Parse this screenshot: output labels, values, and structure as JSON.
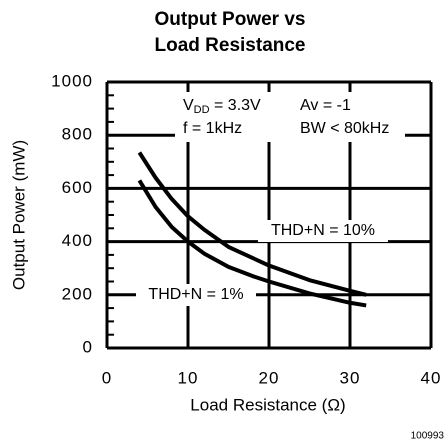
{
  "chart_data": {
    "type": "line",
    "title": [
      "Output Power vs",
      "Load Resistance"
    ],
    "xlabel": "Load Resistance  (Ω)",
    "ylabel": "Output Power (mW)",
    "xlim": [
      0,
      40
    ],
    "xticks": [
      0,
      10,
      20,
      30,
      40
    ],
    "ylim": [
      0,
      1000
    ],
    "yticks": [
      0,
      200,
      400,
      600,
      800,
      1000
    ],
    "grid": true,
    "series": [
      {
        "name": "THD+N = 10%",
        "color": "#000000",
        "x": [
          4,
          6,
          8,
          10,
          12,
          15,
          20,
          25,
          30,
          32
        ],
        "values": [
          735,
          640,
          560,
          495,
          445,
          380,
          310,
          255,
          215,
          200
        ]
      },
      {
        "name": "THD+N = 1%",
        "color": "#000000",
        "x": [
          4,
          6,
          8,
          10,
          12,
          15,
          18,
          20,
          25,
          30,
          32
        ],
        "values": [
          630,
          530,
          455,
          400,
          355,
          305,
          270,
          250,
          205,
          170,
          160
        ]
      }
    ],
    "supply": {
      "symbol": "V",
      "subscript": "DD",
      "value": " = 3.3V"
    },
    "annotations": [
      "Av = -1",
      "f = 1kHz",
      "BW < 80kHz"
    ],
    "figure_id": "100993"
  }
}
